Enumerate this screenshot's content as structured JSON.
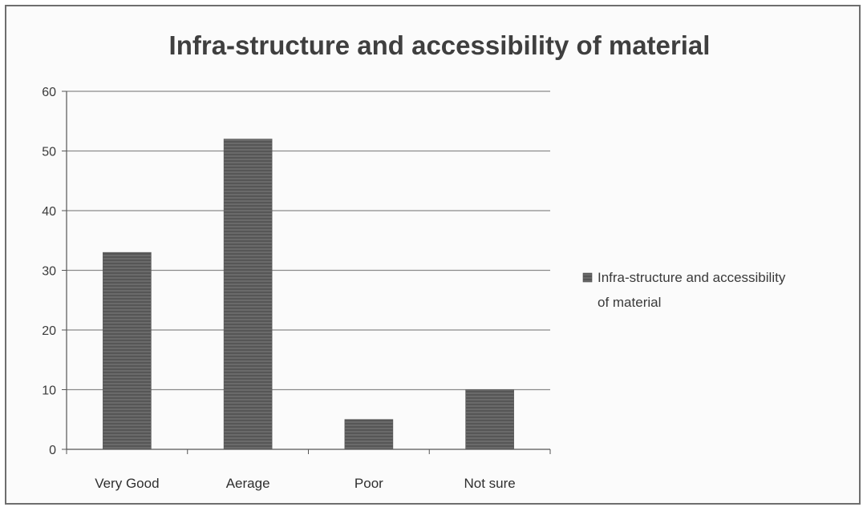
{
  "chart_data": {
    "type": "bar",
    "title": "Infra-structure and accessibility of material",
    "xlabel": "",
    "ylabel": "",
    "categories": [
      "Very Good",
      "Aerage",
      "Poor",
      "Not sure"
    ],
    "series": [
      {
        "name": "Infra-structure and accessibility of material",
        "values": [
          33,
          52,
          5,
          10
        ]
      }
    ],
    "ylim": [
      0,
      60
    ],
    "yticks": [
      "0",
      "10",
      "20",
      "30",
      "40",
      "50",
      "60"
    ],
    "grid": true,
    "legend": "right",
    "colors": {
      "bar": "#5f5f5f",
      "gridline": "#8a8a8a",
      "axis": "#555555",
      "text": "#3a3a3a"
    }
  }
}
